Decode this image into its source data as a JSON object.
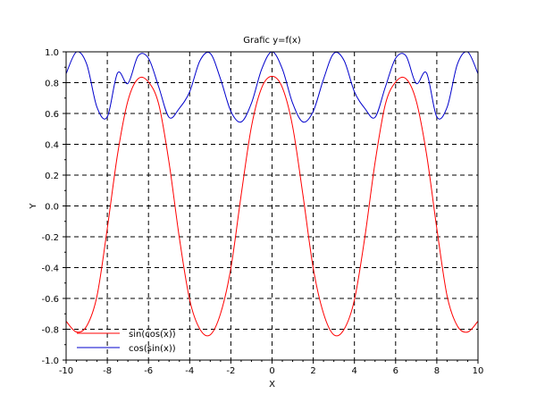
{
  "chart_data": {
    "type": "line",
    "title": "Grafic y=f(x)",
    "xlabel": "X",
    "ylabel": "Y",
    "xlim": [
      -10,
      10
    ],
    "ylim": [
      -1.0,
      1.0
    ],
    "grid": true,
    "legend_position": "bottom-left",
    "x_ticks": [
      -10,
      -8,
      -6,
      -4,
      -2,
      0,
      2,
      4,
      6,
      8,
      10
    ],
    "x_tick_labels": [
      "-10",
      "-8",
      "-6",
      "-4",
      "-2",
      "0",
      "2",
      "4",
      "6",
      "8",
      "10"
    ],
    "y_ticks": [
      -1.0,
      -0.8,
      -0.6,
      -0.4,
      -0.2,
      0.0,
      0.2,
      0.4,
      0.6,
      0.8,
      1.0
    ],
    "y_tick_labels": [
      "-1.0",
      "-0.8",
      "-0.6",
      "-0.4",
      "-0.2",
      "0.0",
      "0.2",
      "0.4",
      "0.6",
      "0.8",
      "1.0"
    ],
    "x": [
      -10,
      -9.5,
      -9,
      -8.5,
      -8,
      -7.5,
      -7,
      -6.5,
      -6,
      -5.5,
      -5,
      -4.5,
      -4,
      -3.5,
      -3,
      -2.5,
      -2,
      -1.5,
      -1,
      -0.5,
      0,
      0.5,
      1,
      1.5,
      2,
      2.5,
      3,
      3.5,
      4,
      4.5,
      5,
      5.5,
      6,
      6.5,
      7,
      7.5,
      8,
      8.5,
      9,
      9.5,
      10
    ],
    "series": [
      {
        "name": "sin(cos(x))",
        "color": "#ff0000",
        "values": [
          -0.748,
          -0.818,
          -0.779,
          -0.584,
          -0.145,
          0.337,
          0.682,
          0.826,
          0.804,
          0.659,
          0.28,
          -0.208,
          -0.609,
          -0.8,
          -0.836,
          -0.698,
          -0.404,
          0.071,
          0.515,
          0.768,
          0.841,
          0.768,
          0.515,
          0.071,
          -0.404,
          -0.698,
          -0.836,
          -0.8,
          -0.609,
          -0.208,
          0.28,
          0.659,
          0.804,
          0.826,
          0.682,
          0.337,
          -0.145,
          -0.584,
          -0.779,
          -0.818,
          -0.748
        ]
      },
      {
        "name": "cos(sin(x))",
        "color": "#0000cc",
        "values": [
          0.858,
          0.999,
          0.92,
          0.64,
          0.578,
          0.863,
          0.795,
          0.974,
          0.958,
          0.771,
          0.575,
          0.634,
          0.741,
          0.943,
          0.99,
          0.823,
          0.614,
          0.545,
          0.667,
          0.889,
          1.0,
          0.889,
          0.667,
          0.545,
          0.614,
          0.823,
          0.99,
          0.943,
          0.741,
          0.634,
          0.575,
          0.771,
          0.958,
          0.974,
          0.795,
          0.863,
          0.578,
          0.64,
          0.92,
          0.999,
          0.858
        ]
      }
    ]
  }
}
